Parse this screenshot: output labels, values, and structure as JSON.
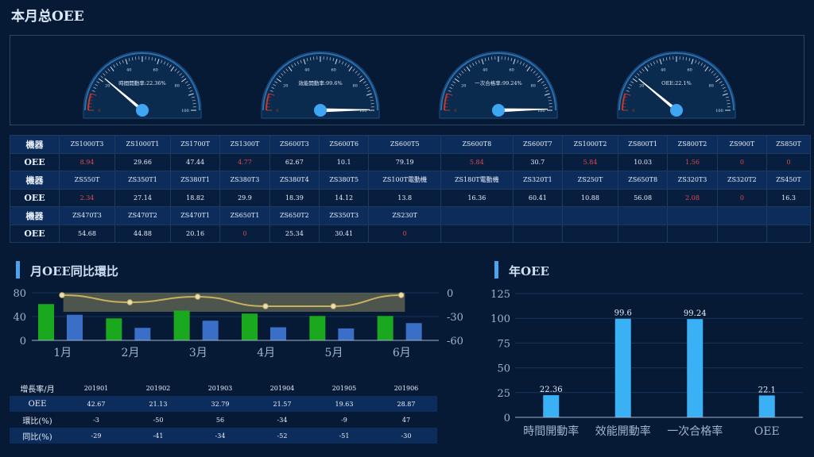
{
  "page_title": "本月总OEE",
  "gauges": [
    {
      "label": "時間開動率:22.36%",
      "value": 22.36
    },
    {
      "label": "效能開動率:99.6%",
      "value": 99.6
    },
    {
      "label": "一次合格率:99.24%",
      "value": 99.24
    },
    {
      "label": "OEE:22.1%",
      "value": 22.1
    }
  ],
  "gauge_ticks": [
    "0",
    "20",
    "40",
    "60",
    "80",
    "100"
  ],
  "machine_table": {
    "header_machine": "機器",
    "header_oee": "OEE",
    "groups": [
      {
        "machines": [
          "ZS1000T3",
          "ZS1000T1",
          "ZS1700T",
          "ZS1300T",
          "ZS600T3",
          "ZS600T6",
          "ZS600T5",
          "ZS600T8",
          "ZS600T7",
          "ZS1000T2",
          "ZS800T1",
          "ZS800T2",
          "ZS900T",
          "ZS850T"
        ],
        "oee": [
          "8.94",
          "29.66",
          "47.44",
          "4.77",
          "62.67",
          "10.1",
          "79.19",
          "5.84",
          "30.7",
          "5.84",
          "10.03",
          "1.56",
          "0",
          "0"
        ]
      },
      {
        "machines": [
          "ZS550T",
          "ZS350T1",
          "ZS380T1",
          "ZS380T3",
          "ZS380T4",
          "ZS380T5",
          "ZS100T電動機",
          "ZS180T電動機",
          "ZS320T1",
          "ZS250T",
          "ZS650T8",
          "ZS320T3",
          "ZS320T2",
          "ZS450T"
        ],
        "oee": [
          "2.34",
          "27.14",
          "18.82",
          "29.9",
          "18.39",
          "14.12",
          "13.8",
          "16.36",
          "60.41",
          "10.88",
          "56.08",
          "2.08",
          "0",
          "16.3"
        ]
      },
      {
        "machines": [
          "ZS470T3",
          "ZS470T2",
          "ZS470T1",
          "ZS650T1",
          "ZS650T2",
          "ZS350T3",
          "ZS230T",
          "",
          "",
          "",
          "",
          "",
          "",
          ""
        ],
        "oee": [
          "54.68",
          "44.88",
          "20.16",
          "0",
          "25.34",
          "30.41",
          "0",
          "",
          "",
          "",
          "",
          "",
          "",
          ""
        ]
      }
    ]
  },
  "monthly_section_title": "月OEE同比環比",
  "yearly_section_title": "年OEE",
  "chart_data": [
    {
      "type": "bar",
      "categories": [
        "1月",
        "2月",
        "3月",
        "4月",
        "5月",
        "6月"
      ],
      "series": [
        {
          "values": [
            61,
            37,
            50,
            45,
            41,
            41
          ],
          "color": "#19a81e"
        },
        {
          "values": [
            43,
            21,
            33,
            22,
            20,
            29
          ],
          "color": "#3a6fc8"
        },
        {
          "values": [
            -3,
            -12,
            -5,
            -17,
            -17,
            -3
          ],
          "type": "line",
          "axis": "right",
          "color": "#c7b060"
        }
      ],
      "yticks_left": [
        "0",
        "40",
        "80"
      ],
      "yticks_right": [
        "0",
        "-30",
        "-60"
      ],
      "ylim": [
        0,
        80
      ],
      "ylim_right": [
        -60,
        0
      ]
    },
    {
      "type": "bar",
      "categories": [
        "時間開動率",
        "效能開動率",
        "一次合格率",
        "OEE"
      ],
      "values": [
        22.36,
        99.6,
        99.24,
        22.1
      ],
      "value_labels": [
        "22.36",
        "99.6",
        "99.24",
        "22.1"
      ],
      "yticks": [
        "0",
        "25",
        "50",
        "75",
        "100",
        "125"
      ],
      "ylim": [
        0,
        125
      ],
      "color": "#3ab0f5"
    }
  ],
  "growth_table": {
    "header": "增長率/月",
    "months": [
      "201901",
      "201902",
      "201903",
      "201904",
      "201905",
      "201906"
    ],
    "rows": [
      {
        "label": "OEE",
        "values": [
          "42.67",
          "21.13",
          "32.79",
          "21.57",
          "19.63",
          "28.87"
        ]
      },
      {
        "label": "環比(%)",
        "values": [
          "-3",
          "-50",
          "56",
          "-34",
          "-9",
          "47"
        ]
      },
      {
        "label": "同比(%)",
        "values": [
          "-29",
          "-41",
          "-34",
          "-52",
          "-51",
          "-30"
        ]
      }
    ]
  }
}
